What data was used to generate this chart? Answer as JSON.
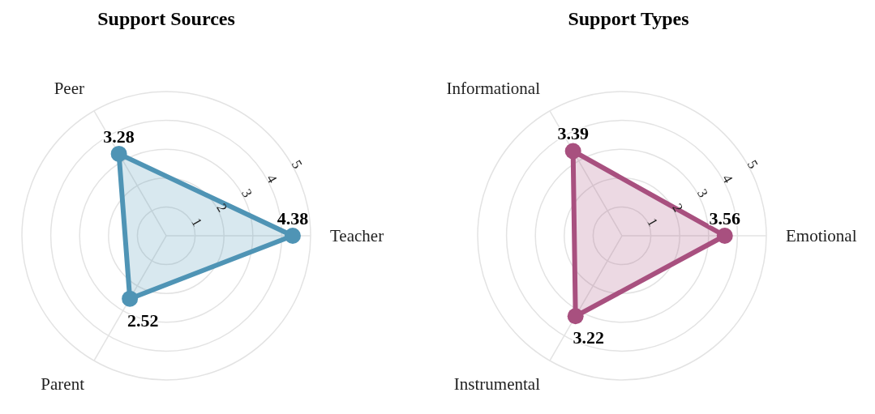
{
  "chart_data": [
    {
      "type": "radar",
      "title": "Support Sources",
      "categories": [
        "Teacher",
        "Parent",
        "Peer"
      ],
      "series": [
        {
          "color": "#4f94b5",
          "values": [
            4.38,
            2.52,
            3.28
          ]
        }
      ],
      "ylim": [
        0,
        5
      ],
      "yticks": [
        1,
        2,
        3,
        4,
        5
      ],
      "grid": true,
      "data_labels": true
    },
    {
      "type": "radar",
      "title": "Support Types",
      "categories": [
        "Emotional",
        "Instrumental",
        "Informational"
      ],
      "series": [
        {
          "color": "#a8507f",
          "values": [
            3.56,
            3.22,
            3.39
          ]
        }
      ],
      "ylim": [
        0,
        5
      ],
      "yticks": [
        1,
        2,
        3,
        4,
        5
      ],
      "grid": true,
      "data_labels": true
    }
  ]
}
